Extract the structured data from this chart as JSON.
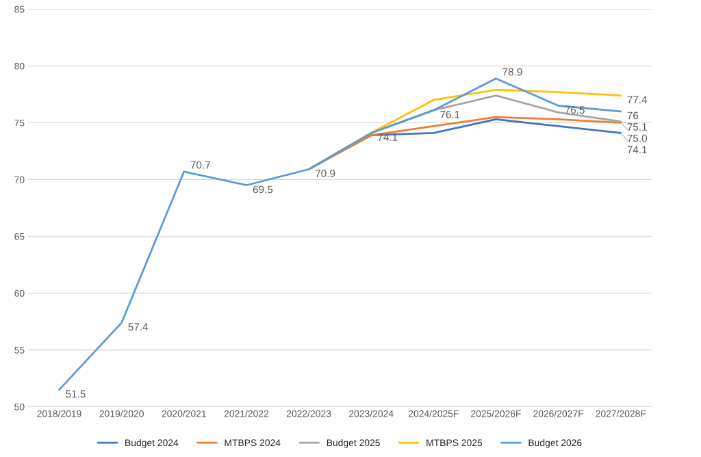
{
  "chart_data": {
    "type": "line",
    "categories": [
      "2018/2019",
      "2019/2020",
      "2020/2021",
      "2021/2022",
      "2022/2023",
      "2023/2024",
      "2024/2025F",
      "2025/2026F",
      "2026/2027F",
      "2027/2028F"
    ],
    "series": [
      {
        "name": "Budget 2024",
        "color": "#4472c4",
        "values": [
          null,
          null,
          null,
          null,
          70.9,
          73.9,
          74.1,
          75.3,
          74.7,
          74.1
        ],
        "value_labels": [
          null,
          null,
          null,
          null,
          null,
          null,
          null,
          null,
          null,
          "74.1"
        ]
      },
      {
        "name": "MTBPS 2024",
        "color": "#ed7d31",
        "values": [
          null,
          null,
          null,
          null,
          70.9,
          73.9,
          74.7,
          75.5,
          75.3,
          75.0
        ],
        "value_labels": [
          null,
          null,
          null,
          null,
          null,
          null,
          null,
          null,
          null,
          "75.0"
        ]
      },
      {
        "name": "Budget 2025",
        "color": "#a5a5a5",
        "values": [
          null,
          null,
          null,
          null,
          70.9,
          74.1,
          76.1,
          77.4,
          75.9,
          75.1
        ],
        "value_labels": [
          null,
          null,
          null,
          null,
          null,
          null,
          null,
          null,
          null,
          "75.1"
        ]
      },
      {
        "name": "MTBPS 2025",
        "color": "#ffc000",
        "values": [
          null,
          null,
          null,
          null,
          70.9,
          74.1,
          77.0,
          77.9,
          77.7,
          77.4
        ],
        "value_labels": [
          null,
          null,
          null,
          null,
          null,
          null,
          null,
          null,
          null,
          "77.4"
        ]
      },
      {
        "name": "Budget 2026",
        "color": "#5b9bd5",
        "values": [
          51.5,
          57.4,
          70.7,
          69.5,
          70.9,
          74.1,
          76.1,
          78.9,
          76.5,
          76.0
        ],
        "value_labels": [
          "51.5",
          "57.4",
          "70.7",
          "69.5",
          "70.9",
          "74.1",
          "76.1",
          "78.9",
          "76.5",
          "76"
        ]
      }
    ],
    "ylim": [
      50,
      85
    ],
    "yticks": [
      50,
      55,
      60,
      65,
      70,
      75,
      80,
      85
    ],
    "grid": "y",
    "legend": "bottom",
    "marker": "none",
    "line_style": "solid"
  }
}
